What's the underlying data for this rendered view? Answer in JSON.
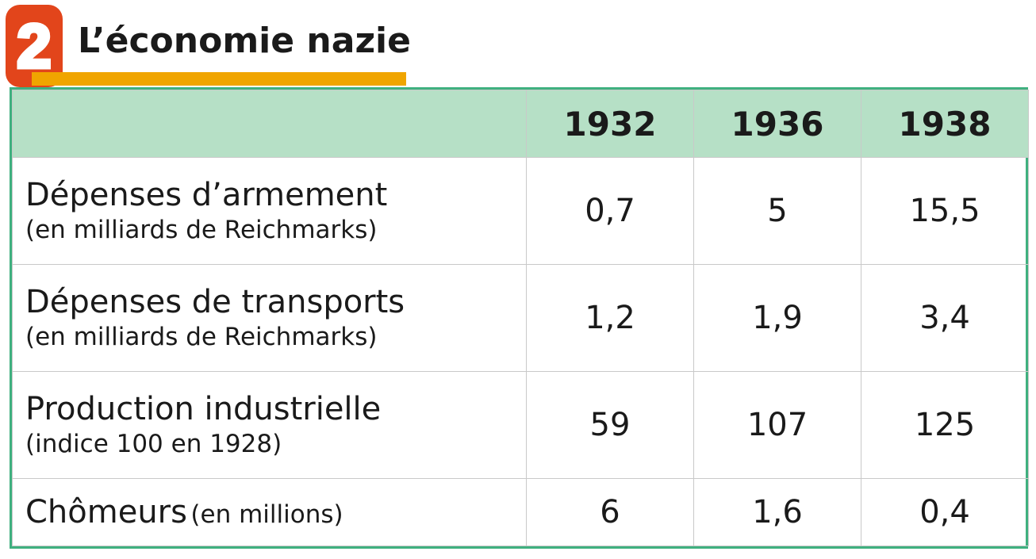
{
  "header": {
    "number": "2",
    "title": "L’économie nazie"
  },
  "colors": {
    "badge": "#e2451b",
    "underline": "#f0a500",
    "header_row": "#b6e0c6",
    "table_border": "#3fb07f"
  },
  "table": {
    "columns": [
      "1932",
      "1936",
      "1938"
    ],
    "rows": [
      {
        "label": "Dépenses d’armement",
        "sub": "(en milliards de Reichmarks)",
        "values": [
          "0,7",
          "5",
          "15,5"
        ]
      },
      {
        "label": "Dépenses de transports",
        "sub": "(en milliards de Reichmarks)",
        "values": [
          "1,2",
          "1,9",
          "3,4"
        ]
      },
      {
        "label": "Production industrielle",
        "sub": "(indice 100 en 1928)",
        "values": [
          "59",
          "107",
          "125"
        ]
      },
      {
        "label": "Chômeurs",
        "sub": "(en millions)",
        "values": [
          "6",
          "1,6",
          "0,4"
        ]
      }
    ]
  }
}
